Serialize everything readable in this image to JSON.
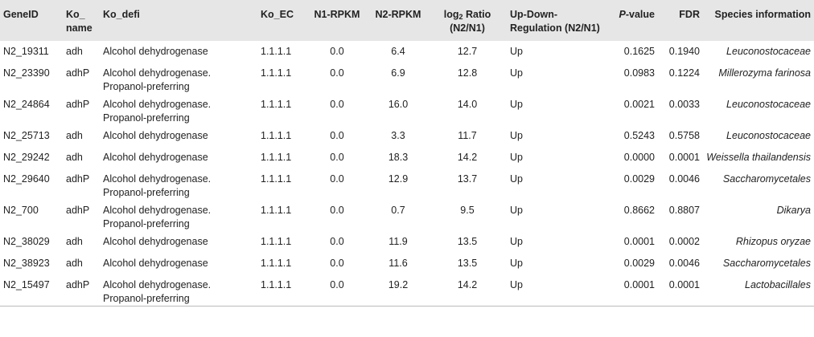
{
  "headers": {
    "geneid": "GeneID",
    "ko_name_1": "Ko_",
    "ko_name_2": "name",
    "ko_defi": "Ko_defi",
    "ko_ec": "Ko_EC",
    "n1_rpkm": "N1-RPKM",
    "n2_rpkm": "N2-RPKM",
    "log_prefix": "log",
    "log_sub": "2",
    "log_suffix": " Ratio",
    "log_line2": "(N2/N1)",
    "updown_1": "Up-Down-",
    "updown_2": "Regulation (N2/N1)",
    "pvalue_p": "P",
    "pvalue_rest": "-value",
    "fdr": "FDR",
    "species": "Species information"
  },
  "rows": [
    {
      "gene": "N2_19311",
      "ko": "adh",
      "defi1": "Alcohol dehydrogenase",
      "defi2": "",
      "ec": "1.1.1.1",
      "n1": "0.0",
      "n2": "6.4",
      "log": "12.7",
      "reg": "Up",
      "p": "0.1625",
      "fdr": "0.1940",
      "species": "Leuconostocaceae"
    },
    {
      "gene": "N2_23390",
      "ko": "adhP",
      "defi1": "Alcohol dehydrogenase.",
      "defi2": "Propanol-preferring",
      "ec": "1.1.1.1",
      "n1": "0.0",
      "n2": "6.9",
      "log": "12.8",
      "reg": "Up",
      "p": "0.0983",
      "fdr": "0.1224",
      "species": "Millerozyma farinosa"
    },
    {
      "gene": "N2_24864",
      "ko": "adhP",
      "defi1": "Alcohol dehydrogenase.",
      "defi2": "Propanol-preferring",
      "ec": "1.1.1.1",
      "n1": "0.0",
      "n2": "16.0",
      "log": "14.0",
      "reg": "Up",
      "p": "0.0021",
      "fdr": "0.0033",
      "species": "Leuconostocaceae"
    },
    {
      "gene": "N2_25713",
      "ko": "adh",
      "defi1": "Alcohol dehydrogenase",
      "defi2": "",
      "ec": "1.1.1.1",
      "n1": "0.0",
      "n2": "3.3",
      "log": "11.7",
      "reg": "Up",
      "p": "0.5243",
      "fdr": "0.5758",
      "species": "Leuconostocaceae"
    },
    {
      "gene": "N2_29242",
      "ko": "adh",
      "defi1": "Alcohol dehydrogenase",
      "defi2": "",
      "ec": "1.1.1.1",
      "n1": "0.0",
      "n2": "18.3",
      "log": "14.2",
      "reg": "Up",
      "p": "0.0000",
      "fdr": "0.0001",
      "species": "Weissella thailandensis"
    },
    {
      "gene": "N2_29640",
      "ko": "adhP",
      "defi1": "Alcohol dehydrogenase.",
      "defi2": "Propanol-preferring",
      "ec": "1.1.1.1",
      "n1": "0.0",
      "n2": "12.9",
      "log": "13.7",
      "reg": "Up",
      "p": "0.0029",
      "fdr": "0.0046",
      "species": "Saccharomycetales"
    },
    {
      "gene": "N2_700",
      "ko": "adhP",
      "defi1": "Alcohol dehydrogenase.",
      "defi2": "Propanol-preferring",
      "ec": "1.1.1.1",
      "n1": "0.0",
      "n2": "0.7",
      "log": "9.5",
      "reg": "Up",
      "p": "0.8662",
      "fdr": "0.8807",
      "species": "Dikarya"
    },
    {
      "gene": "N2_38029",
      "ko": "adh",
      "defi1": "Alcohol dehydrogenase",
      "defi2": "",
      "ec": "1.1.1.1",
      "n1": "0.0",
      "n2": "11.9",
      "log": "13.5",
      "reg": "Up",
      "p": "0.0001",
      "fdr": "0.0002",
      "species": "Rhizopus oryzae"
    },
    {
      "gene": "N2_38923",
      "ko": "adh",
      "defi1": "Alcohol dehydrogenase",
      "defi2": "",
      "ec": "1.1.1.1",
      "n1": "0.0",
      "n2": "11.6",
      "log": "13.5",
      "reg": "Up",
      "p": "0.0029",
      "fdr": "0.0046",
      "species": "Saccharomycetales"
    },
    {
      "gene": "N2_15497",
      "ko": "adhP",
      "defi1": "Alcohol dehydrogenase.",
      "defi2": "Propanol-preferring",
      "ec": "1.1.1.1",
      "n1": "0.0",
      "n2": "19.2",
      "log": "14.2",
      "reg": "Up",
      "p": "0.0001",
      "fdr": "0.0001",
      "species": "Lactobacillales"
    }
  ]
}
